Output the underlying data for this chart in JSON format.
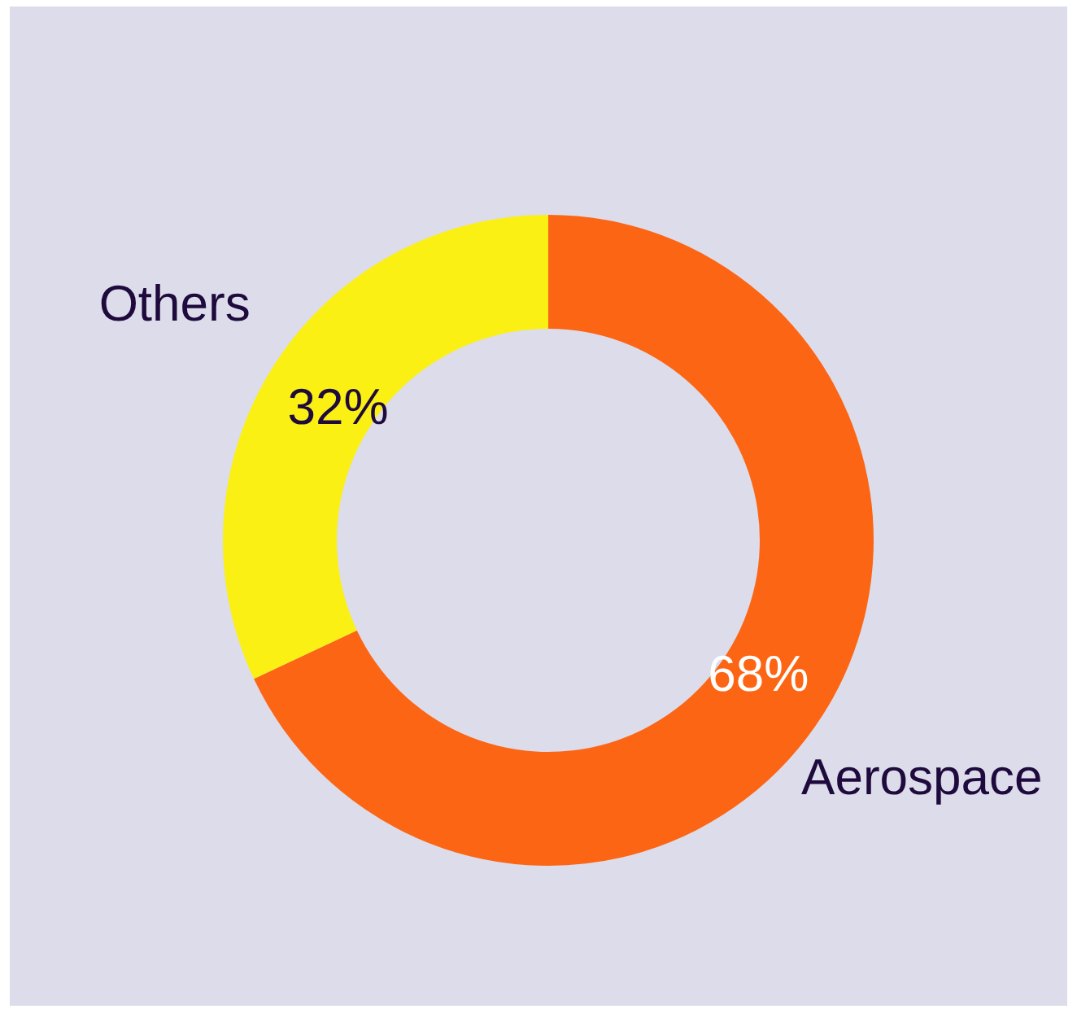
{
  "chart_data": {
    "type": "donut",
    "categories": [
      "Aerospace",
      "Others"
    ],
    "values": [
      68,
      32
    ],
    "colors": [
      "#fc6514",
      "#fbf014"
    ],
    "value_labels": [
      "68%",
      "32%"
    ]
  }
}
